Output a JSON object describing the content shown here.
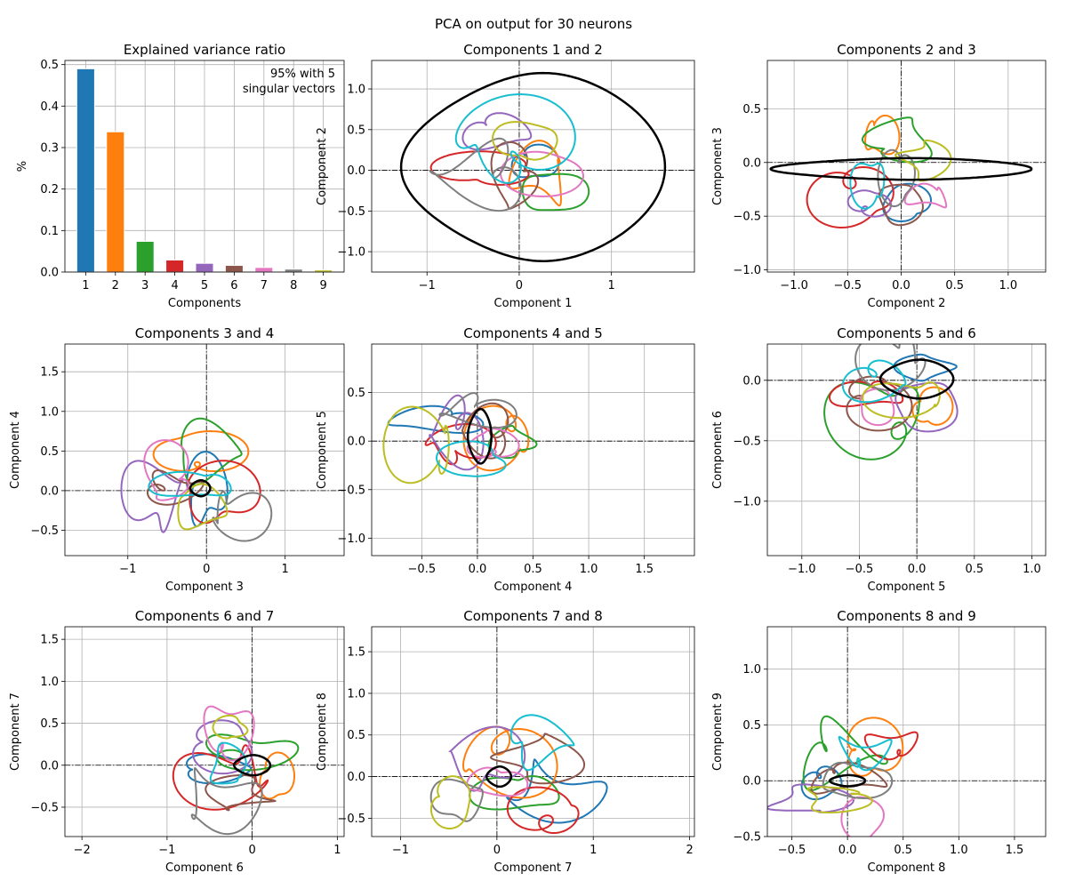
{
  "suptitle": "PCA on output for 30 neurons",
  "colors": [
    "#1f77b4",
    "#ff7f0e",
    "#2ca02c",
    "#d62728",
    "#9467bd",
    "#8c564b",
    "#e377c2",
    "#7f7f7f",
    "#bcbd22",
    "#17becf"
  ],
  "chart_data": [
    {
      "type": "bar",
      "title": "Explained variance ratio",
      "xlabel": "Components",
      "ylabel": "%",
      "categories": [
        "1",
        "2",
        "3",
        "4",
        "5",
        "6",
        "7",
        "8",
        "9"
      ],
      "values": [
        0.49,
        0.338,
        0.074,
        0.029,
        0.021,
        0.016,
        0.011,
        0.007,
        0.005
      ],
      "xlim": [
        0.3,
        9.7
      ],
      "ylim": [
        0,
        0.51
      ],
      "yticks": [
        0.0,
        0.1,
        0.2,
        0.3,
        0.4,
        0.5
      ],
      "annotation": [
        "95% with 5",
        "singular vectors"
      ],
      "grid": true
    },
    {
      "type": "line",
      "title": "Components 1 and 2",
      "xlabel": "Component 1",
      "ylabel": "Component 2",
      "xlim": [
        -1.6,
        1.9
      ],
      "ylim": [
        -1.25,
        1.35
      ],
      "xticks": [
        -1,
        0,
        1
      ],
      "yticks": [
        -1.0,
        -0.5,
        0.0,
        0.5,
        1.0
      ],
      "grid": true,
      "series_count": 10,
      "highlight": {
        "color": "#000000",
        "center": [
          0.15,
          0.04
        ],
        "radius": [
          1.35,
          1.15
        ]
      }
    },
    {
      "type": "line",
      "title": "Components 2 and 3",
      "xlabel": "Component 2",
      "ylabel": "Component 3",
      "xlim": [
        -1.25,
        1.35
      ],
      "ylim": [
        -1.02,
        0.95
      ],
      "xticks": [
        -1.0,
        -0.5,
        0.0,
        0.5,
        1.0
      ],
      "yticks": [
        -1.0,
        -0.5,
        0.0,
        0.5
      ],
      "grid": true,
      "series_count": 10,
      "highlight": {
        "color": "#000000",
        "center": [
          0.0,
          -0.06
        ],
        "radius": [
          1.15,
          0.1
        ]
      }
    },
    {
      "type": "line",
      "title": "Components 3 and 4",
      "xlabel": "Component 3",
      "ylabel": "Component 4",
      "xlim": [
        -1.8,
        1.75
      ],
      "ylim": [
        -0.82,
        1.85
      ],
      "xticks": [
        -1,
        0,
        1
      ],
      "yticks": [
        -0.5,
        0.0,
        0.5,
        1.0,
        1.5
      ],
      "grid": true,
      "series_count": 10,
      "highlight": {
        "color": "#000000",
        "center": [
          -0.08,
          0.03
        ],
        "radius": [
          0.12,
          0.1
        ]
      }
    },
    {
      "type": "line",
      "title": "Components 4 and 5",
      "xlabel": "Component 4",
      "ylabel": "Component 5",
      "xlim": [
        -0.95,
        1.95
      ],
      "ylim": [
        -1.18,
        1.0
      ],
      "xticks": [
        -0.5,
        0.0,
        0.5,
        1.0,
        1.5
      ],
      "yticks": [
        -1.0,
        -0.5,
        0.0,
        0.5
      ],
      "grid": true,
      "series_count": 10,
      "highlight": {
        "color": "#000000",
        "center": [
          0.02,
          0.05
        ],
        "radius": [
          0.1,
          0.28
        ]
      }
    },
    {
      "type": "line",
      "title": "Components 5 and 6",
      "xlabel": "Component 5",
      "ylabel": "Component 6",
      "xlim": [
        -1.3,
        1.12
      ],
      "ylim": [
        -1.45,
        0.3
      ],
      "xticks": [
        -1.0,
        -0.5,
        0.0,
        0.5,
        1.0
      ],
      "yticks": [
        -1.0,
        -0.5,
        0.0
      ],
      "grid": true,
      "series_count": 10,
      "highlight": {
        "color": "#000000",
        "center": [
          0.0,
          0.01
        ],
        "radius": [
          0.3,
          0.16
        ]
      }
    },
    {
      "type": "line",
      "title": "Components 6 and 7",
      "xlabel": "Component 6",
      "ylabel": "Component 7",
      "xlim": [
        -2.2,
        1.08
      ],
      "ylim": [
        -0.85,
        1.65
      ],
      "xticks": [
        -2,
        -1,
        0,
        1
      ],
      "yticks": [
        -0.5,
        0.0,
        0.5,
        1.0,
        1.5
      ],
      "grid": true,
      "series_count": 10,
      "highlight": {
        "color": "#000000",
        "center": [
          0.0,
          0.0
        ],
        "radius": [
          0.2,
          0.12
        ]
      }
    },
    {
      "type": "line",
      "title": "Components 7 and 8",
      "xlabel": "Component 7",
      "ylabel": "Component 8",
      "xlim": [
        -1.3,
        2.05
      ],
      "ylim": [
        -0.72,
        1.8
      ],
      "xticks": [
        -1,
        0,
        1,
        2
      ],
      "yticks": [
        -0.5,
        0.0,
        0.5,
        1.0,
        1.5
      ],
      "grid": true,
      "series_count": 10,
      "highlight": {
        "color": "#000000",
        "center": [
          0.02,
          0.0
        ],
        "radius": [
          0.12,
          0.12
        ]
      }
    },
    {
      "type": "line",
      "title": "Components 8 and 9",
      "xlabel": "Component 8",
      "ylabel": "Component 9",
      "xlim": [
        -0.72,
        1.78
      ],
      "ylim": [
        -0.5,
        1.38
      ],
      "xticks": [
        -0.5,
        0.0,
        0.5,
        1.0,
        1.5
      ],
      "yticks": [
        -0.5,
        0.0,
        0.5,
        1.0
      ],
      "grid": true,
      "series_count": 10,
      "highlight": {
        "color": "#000000",
        "center": [
          0.0,
          0.0
        ],
        "radius": [
          0.15,
          0.05
        ]
      }
    }
  ]
}
